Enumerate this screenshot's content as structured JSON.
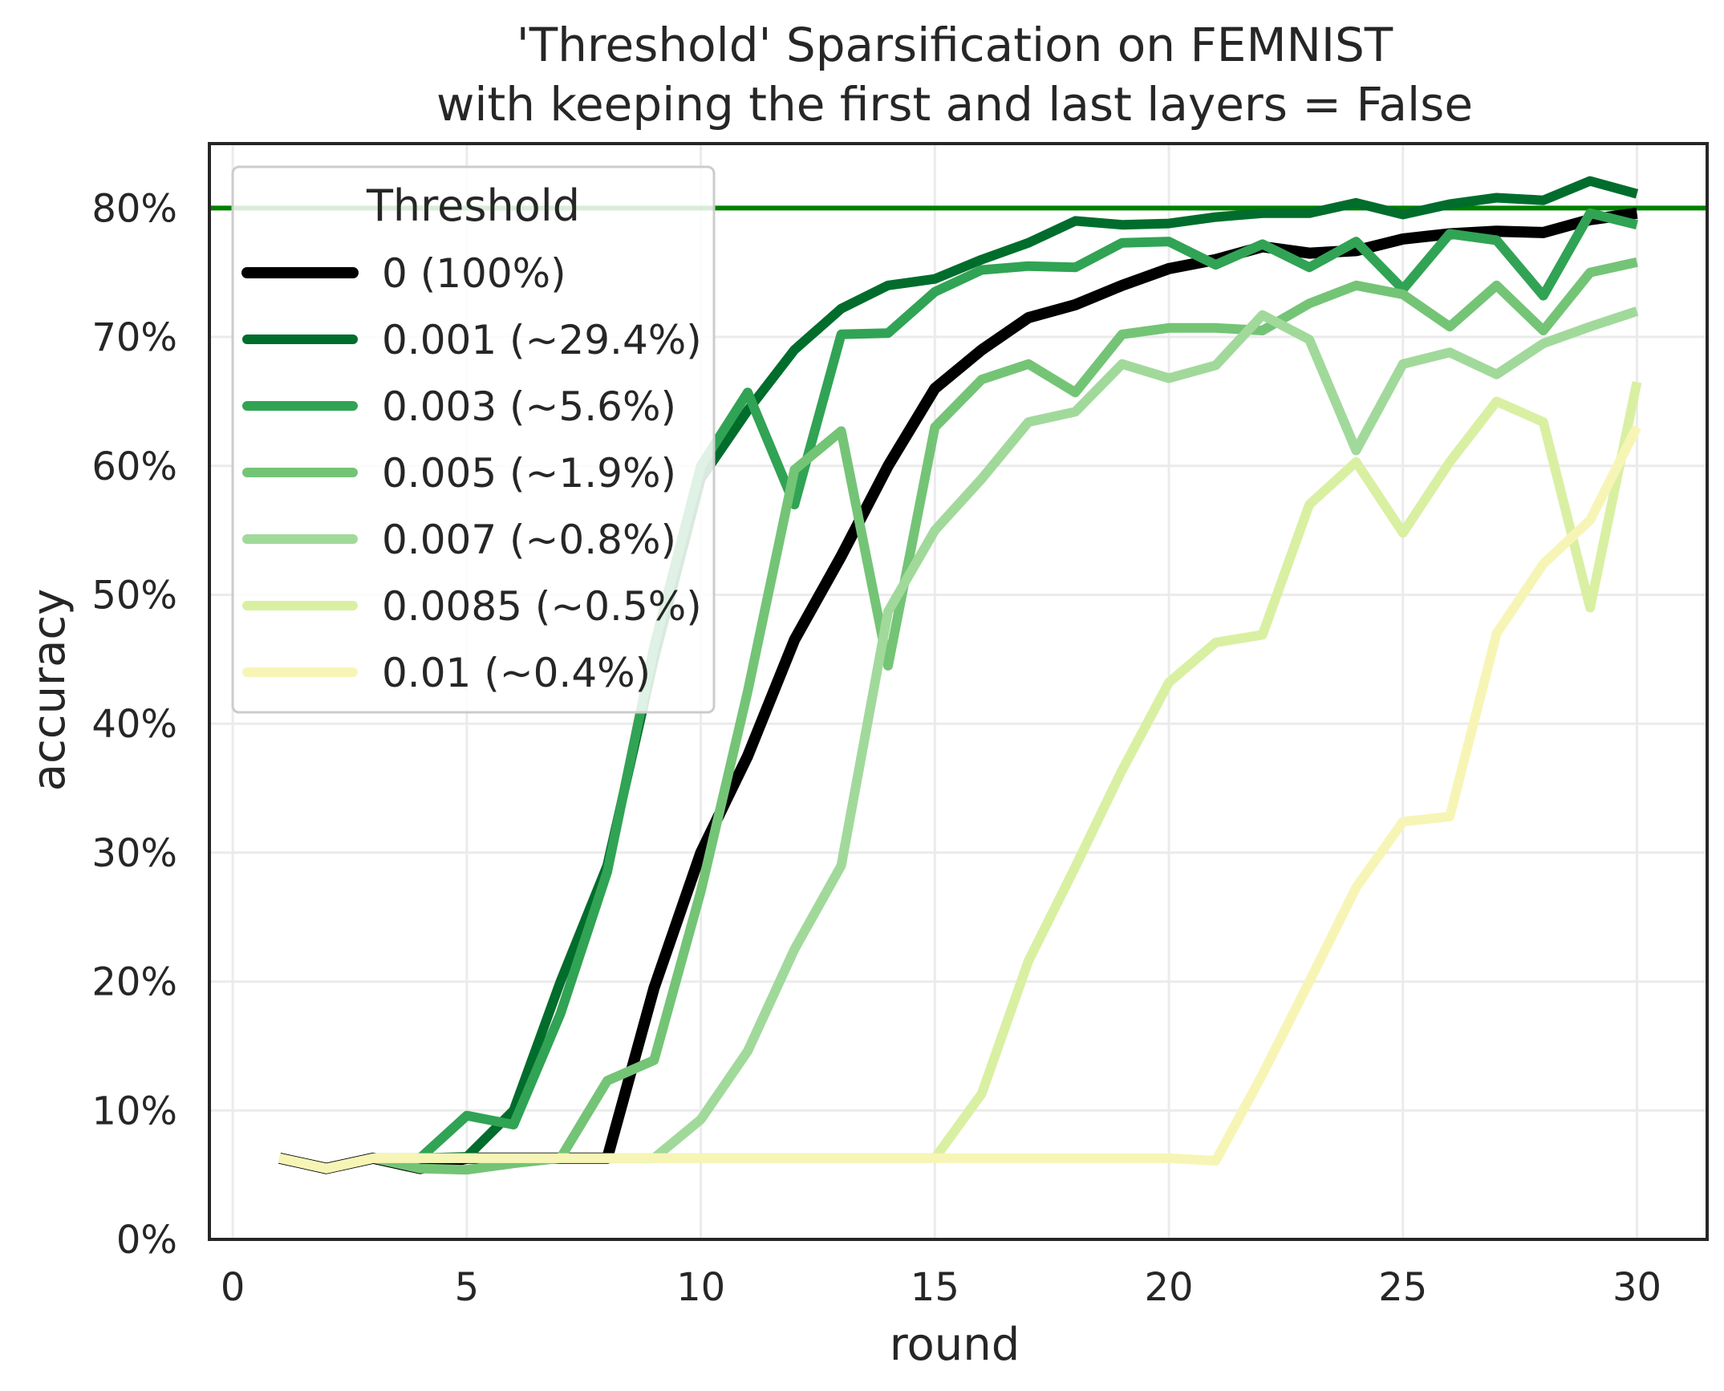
{
  "chart_data": {
    "type": "line",
    "title": "'Threshold' Sparsification on FEMNIST",
    "subtitle": "with keeping the first and last layers = False",
    "xlabel": "round",
    "ylabel": "accuracy",
    "xlim": [
      -0.5,
      31.5
    ],
    "ylim": [
      0,
      85
    ],
    "xticks": [
      0,
      5,
      10,
      15,
      20,
      25,
      30
    ],
    "yticks": [
      0,
      10,
      20,
      30,
      40,
      50,
      60,
      70,
      80
    ],
    "ytick_format": "{v}%",
    "grid": true,
    "legend": {
      "title": "Threshold",
      "position": "upper-left"
    },
    "reference_line": {
      "y": 80,
      "color": "#008000"
    },
    "x": [
      1,
      2,
      3,
      4,
      5,
      6,
      7,
      8,
      9,
      10,
      11,
      12,
      13,
      14,
      15,
      16,
      17,
      18,
      19,
      20,
      21,
      22,
      23,
      24,
      25,
      26,
      27,
      28,
      29,
      30
    ],
    "series": [
      {
        "name": "0 (100%)",
        "color": "#000000",
        "values": [
          6.3,
          5.5,
          6.3,
          5.5,
          6.3,
          6.3,
          6.3,
          6.3,
          19.5,
          30,
          37.5,
          46.5,
          53,
          60,
          66,
          69,
          71.5,
          72.5,
          74,
          75.3,
          76,
          77,
          76.5,
          76.7,
          77.6,
          78,
          78.2,
          78.1,
          79.1,
          79.6
        ]
      },
      {
        "name": "0.001 (~29.4%)",
        "color": "#006d2c",
        "values": [
          6.3,
          5.5,
          6.3,
          6.3,
          6.4,
          10,
          20,
          29,
          45,
          59,
          64.3,
          69,
          72.2,
          74,
          74.5,
          76,
          77.3,
          79,
          78.7,
          78.8,
          79.3,
          79.6,
          79.6,
          80.4,
          79.5,
          80.3,
          80.8,
          80.6,
          82.1,
          81.1
        ]
      },
      {
        "name": "0.003 (~5.6%)",
        "color": "#31a354",
        "values": [
          6.3,
          5.5,
          6.3,
          6.3,
          9.6,
          8.9,
          17.5,
          28.5,
          46,
          60,
          65.7,
          57,
          70.2,
          70.3,
          73.5,
          75.2,
          75.5,
          75.4,
          77.3,
          77.4,
          75.6,
          77.2,
          75.4,
          77.4,
          73.7,
          78,
          77.5,
          73.2,
          79.6,
          78.7
        ]
      },
      {
        "name": "0.005 (~1.9%)",
        "color": "#74c476",
        "values": [
          6.3,
          5.5,
          6.3,
          5.5,
          5.4,
          5.9,
          6.3,
          12.3,
          13.9,
          27,
          42.5,
          59.7,
          62.7,
          44.5,
          63,
          66.7,
          67.9,
          65.7,
          70.2,
          70.7,
          70.7,
          70.5,
          72.6,
          74,
          73.3,
          70.8,
          74,
          70.5,
          75,
          75.8
        ]
      },
      {
        "name": "0.007 (~0.8%)",
        "color": "#a1d99b",
        "values": [
          6.3,
          5.5,
          6.3,
          6.3,
          6.3,
          6.3,
          6.3,
          6.3,
          6.3,
          9.3,
          14.6,
          22.5,
          29,
          48.7,
          55,
          59,
          63.4,
          64.2,
          67.9,
          66.8,
          67.8,
          71.7,
          69.8,
          61.2,
          67.9,
          68.8,
          67.1,
          69.5,
          70.8,
          72
        ]
      },
      {
        "name": "0.0085 (~0.5%)",
        "color": "#d9f0a3",
        "values": [
          6.3,
          5.5,
          6.3,
          6.3,
          6.3,
          6.3,
          6.3,
          6.3,
          6.3,
          6.3,
          6.3,
          6.3,
          6.3,
          6.3,
          6.3,
          11.3,
          21.6,
          28.9,
          36.4,
          43.2,
          46.3,
          46.9,
          57,
          60.3,
          54.8,
          60.3,
          65,
          63.4,
          49,
          66.5
        ]
      },
      {
        "name": "0.01 (~0.4%)",
        "color": "#f7f5b6",
        "values": [
          6.3,
          5.5,
          6.3,
          6.3,
          6.3,
          6.3,
          6.3,
          6.3,
          6.3,
          6.3,
          6.3,
          6.3,
          6.3,
          6.3,
          6.3,
          6.3,
          6.3,
          6.3,
          6.3,
          6.3,
          6.1,
          12.8,
          20,
          27.3,
          32.4,
          32.8,
          47,
          52.4,
          55.8,
          63
        ]
      }
    ]
  }
}
